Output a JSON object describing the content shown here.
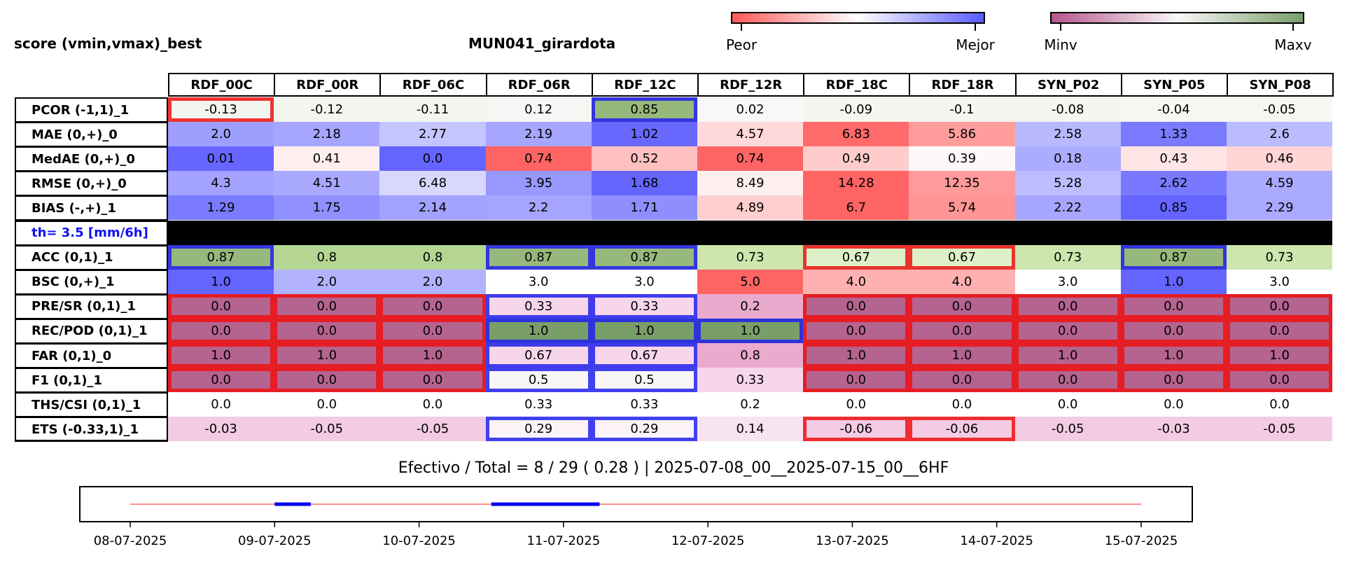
{
  "header": {
    "left_title": "score (vmin,vmax)_best",
    "center_title": "MUN041_girardota"
  },
  "colorbars": [
    {
      "low_label": "Peor",
      "high_label": "Mejor",
      "colors": [
        "#ff5a5a",
        "#ffffff",
        "#5a5aff"
      ]
    },
    {
      "low_label": "Minv",
      "high_label": "Maxv",
      "colors": [
        "#b5568e",
        "#f7f7f7",
        "#7a9e6a"
      ]
    }
  ],
  "chart_data": {
    "type": "table",
    "columns": [
      "RDF_00C",
      "RDF_00R",
      "RDF_06C",
      "RDF_06R",
      "RDF_12C",
      "RDF_12R",
      "RDF_18C",
      "RDF_18R",
      "SYN_P02",
      "SYN_P05",
      "SYN_P08"
    ],
    "rows": [
      {
        "label": "PCOR (-1,1)_1",
        "values": [
          "-0.13",
          "-0.12",
          "-0.11",
          "0.12",
          "0.85",
          "0.02",
          "-0.09",
          "-0.1",
          "-0.08",
          "-0.04",
          "-0.05"
        ],
        "colors": [
          "#f3f6ee",
          "#f3f6ee",
          "#f3f6ee",
          "#f6f7f4",
          "#97b87c",
          "#f8f8f8",
          "#f4f6ef",
          "#f4f6ef",
          "#f4f6ef",
          "#f6f7f3",
          "#f5f7f2"
        ],
        "best": [
          4
        ],
        "worst": [
          0
        ]
      },
      {
        "label": "MAE (0,+)_0",
        "values": [
          "2.0",
          "2.18",
          "2.77",
          "2.19",
          "1.02",
          "4.57",
          "6.83",
          "5.86",
          "2.58",
          "1.33",
          "2.6"
        ],
        "colors": [
          "#9e9eff",
          "#a6a6ff",
          "#c4c4ff",
          "#a6a6ff",
          "#6868ff",
          "#ffd9d9",
          "#ff6a6a",
          "#ff9d9d",
          "#b9b9ff",
          "#7a7aff",
          "#bbbbff"
        ],
        "best": [],
        "worst": []
      },
      {
        "label": "MedAE (0,+)_0",
        "values": [
          "0.01",
          "0.41",
          "0.0",
          "0.74",
          "0.52",
          "0.74",
          "0.49",
          "0.39",
          "0.18",
          "0.43",
          "0.46"
        ],
        "colors": [
          "#6666ff",
          "#ffeeee",
          "#6464ff",
          "#ff6464",
          "#ffc0c0",
          "#ff6464",
          "#ffcccc",
          "#fff8f8",
          "#acacff",
          "#ffe5e5",
          "#ffd5d5"
        ],
        "best": [],
        "worst": []
      },
      {
        "label": "RMSE (0,+)_0",
        "values": [
          "4.3",
          "4.51",
          "6.48",
          "3.95",
          "1.68",
          "8.49",
          "14.28",
          "12.35",
          "5.28",
          "2.62",
          "4.59"
        ],
        "colors": [
          "#a3a3ff",
          "#a8a8ff",
          "#d8d8ff",
          "#9898ff",
          "#6464ff",
          "#fff0f0",
          "#ff6464",
          "#ff9a9a",
          "#bcbcff",
          "#7979ff",
          "#aaaaff"
        ],
        "best": [],
        "worst": []
      },
      {
        "label": "BIAS (-,+)_1",
        "values": [
          "1.29",
          "1.75",
          "2.14",
          "2.2",
          "1.71",
          "4.89",
          "6.7",
          "5.74",
          "2.22",
          "0.85",
          "2.29"
        ],
        "colors": [
          "#7a7aff",
          "#9090ff",
          "#a2a2ff",
          "#a5a5ff",
          "#8e8eff",
          "#ffcfcf",
          "#ff6464",
          "#ff9595",
          "#a6a6ff",
          "#6464ff",
          "#a9a9ff"
        ],
        "best": [],
        "worst": []
      },
      {
        "label": "th= 3.5 [mm/6h]",
        "separator": true
      },
      {
        "label": "ACC (0,1)_1",
        "values": [
          "0.87",
          "0.8",
          "0.8",
          "0.87",
          "0.87",
          "0.73",
          "0.67",
          "0.67",
          "0.73",
          "0.87",
          "0.73"
        ],
        "colors": [
          "#97b87c",
          "#b5d692",
          "#b5d692",
          "#97b87c",
          "#97b87c",
          "#cce6ad",
          "#def0c8",
          "#def0c8",
          "#cce6ad",
          "#97b87c",
          "#cce6ad"
        ],
        "best": [
          0,
          3,
          4,
          9
        ],
        "worst": [
          6,
          7
        ]
      },
      {
        "label": "BSC (0,+)_1",
        "values": [
          "1.0",
          "2.0",
          "2.0",
          "3.0",
          "3.0",
          "5.0",
          "4.0",
          "4.0",
          "3.0",
          "1.0",
          "3.0"
        ],
        "colors": [
          "#6464ff",
          "#b2b2ff",
          "#b2b2ff",
          "#ffffff",
          "#ffffff",
          "#ff6464",
          "#ffb1b1",
          "#ffb1b1",
          "#ffffff",
          "#6464ff",
          "#ffffff"
        ],
        "best": [],
        "worst": []
      },
      {
        "label": "PRE/SR (0,1)_1",
        "values": [
          "0.0",
          "0.0",
          "0.0",
          "0.33",
          "0.33",
          "0.2",
          "0.0",
          "0.0",
          "0.0",
          "0.0",
          "0.0"
        ],
        "colors": [
          "#b5638f",
          "#b5638f",
          "#b5638f",
          "#f7d6ec",
          "#f7d6ec",
          "#e9aacd",
          "#b5638f",
          "#b5638f",
          "#b5638f",
          "#b5638f",
          "#b5638f"
        ],
        "best": [
          3,
          4
        ],
        "worst": [
          0,
          1,
          2,
          6,
          7,
          8,
          9,
          10
        ]
      },
      {
        "label": "REC/POD (0,1)_1",
        "values": [
          "0.0",
          "0.0",
          "0.0",
          "1.0",
          "1.0",
          "1.0",
          "0.0",
          "0.0",
          "0.0",
          "0.0",
          "0.0"
        ],
        "colors": [
          "#b5638f",
          "#b5638f",
          "#b5638f",
          "#7a9e6a",
          "#7a9e6a",
          "#7a9e6a",
          "#b5638f",
          "#b5638f",
          "#b5638f",
          "#b5638f",
          "#b5638f"
        ],
        "best": [
          3,
          4,
          5
        ],
        "worst": [
          0,
          1,
          2,
          6,
          7,
          8,
          9,
          10
        ]
      },
      {
        "label": "FAR (0,1)_0",
        "values": [
          "1.0",
          "1.0",
          "1.0",
          "0.67",
          "0.67",
          "0.8",
          "1.0",
          "1.0",
          "1.0",
          "1.0",
          "1.0"
        ],
        "colors": [
          "#b5638f",
          "#b5638f",
          "#b5638f",
          "#f7d6ec",
          "#f7d6ec",
          "#e9aacd",
          "#b5638f",
          "#b5638f",
          "#b5638f",
          "#b5638f",
          "#b5638f"
        ],
        "best": [
          3,
          4
        ],
        "worst": [
          0,
          1,
          2,
          6,
          7,
          8,
          9,
          10
        ]
      },
      {
        "label": "F1 (0,1)_1",
        "values": [
          "0.0",
          "0.0",
          "0.0",
          "0.5",
          "0.5",
          "0.33",
          "0.0",
          "0.0",
          "0.0",
          "0.0",
          "0.0"
        ],
        "colors": [
          "#b5638f",
          "#b5638f",
          "#b5638f",
          "#f7f7f7",
          "#f7f7f7",
          "#f7d6ec",
          "#b5638f",
          "#b5638f",
          "#b5638f",
          "#b5638f",
          "#b5638f"
        ],
        "best": [
          3,
          4
        ],
        "worst": [
          0,
          1,
          2,
          6,
          7,
          8,
          9,
          10
        ]
      },
      {
        "label": "THS/CSI (0,1)_1",
        "values": [
          "0.0",
          "0.0",
          "0.0",
          "0.33",
          "0.33",
          "0.2",
          "0.0",
          "0.0",
          "0.0",
          "0.0",
          "0.0"
        ],
        "colors": [
          "#ffffff",
          "#ffffff",
          "#ffffff",
          "#ffffff",
          "#ffffff",
          "#ffffff",
          "#ffffff",
          "#ffffff",
          "#ffffff",
          "#ffffff",
          "#ffffff"
        ],
        "best": [],
        "worst": []
      },
      {
        "label": "ETS (-0.33,1)_1",
        "values": [
          "-0.03",
          "-0.05",
          "-0.05",
          "0.29",
          "0.29",
          "0.14",
          "-0.06",
          "-0.06",
          "-0.05",
          "-0.03",
          "-0.05"
        ],
        "colors": [
          "#f3cbe3",
          "#f3cbe3",
          "#f3cbe3",
          "#fcf3f8",
          "#fcf3f8",
          "#f8e4f0",
          "#f3cbe3",
          "#f3cbe3",
          "#f3cbe3",
          "#f3cbe3",
          "#f3cbe3"
        ],
        "best": [
          3,
          4
        ],
        "worst": [
          6,
          7
        ]
      }
    ],
    "highlight_colors": {
      "best": "#2020ee",
      "worst": "#ee1010"
    },
    "separator_color": "#000000",
    "separator_label_color": "#1010ee"
  },
  "footer": {
    "summary": "Efectivo / Total  =  8 / 29 ( 0.28 ) | 2025-07-08_00__2025-07-15_00__6HF"
  },
  "timeline": {
    "x_ticks": [
      "08-07-2025",
      "09-07-2025",
      "10-07-2025",
      "11-07-2025",
      "12-07-2025",
      "13-07-2025",
      "14-07-2025",
      "15-07-2025"
    ],
    "x_range_days": [
      0,
      7
    ],
    "baseline_color": "#ff6464",
    "effective_color": "#0000ee",
    "effective_segments": [
      [
        1.0,
        1.25
      ],
      [
        2.5,
        3.25
      ]
    ]
  }
}
